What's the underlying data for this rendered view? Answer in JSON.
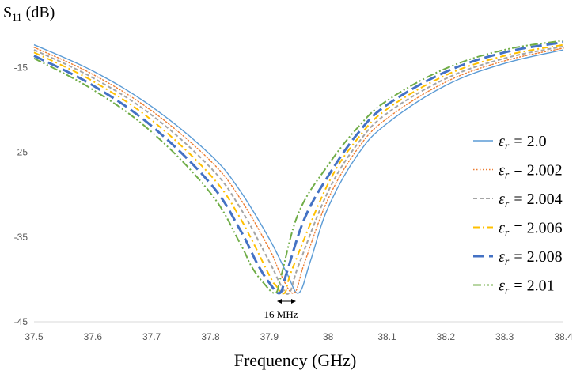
{
  "chart_data": {
    "type": "line",
    "ylabel_main": "S",
    "ylabel_sub": "11",
    "ylabel_unit": "(dB)",
    "xlabel": "Frequency (GHz)",
    "xlim": [
      37.5,
      38.4
    ],
    "ylim": [
      -45,
      -11.5
    ],
    "x_ticks": [
      "37.5",
      "37.6",
      "37.7",
      "37.8",
      "37.9",
      "38",
      "38.1",
      "38.2",
      "38.3",
      "38.4"
    ],
    "y_ticks": [
      "-15",
      "-25",
      "-35",
      "-45"
    ],
    "grid": false,
    "legend_position": "right",
    "annotation": "16 MHz",
    "series": [
      {
        "name_symbol": "ε",
        "name_sub": "r",
        "name_value": "= 2.0",
        "color": "#5b9bd5",
        "dash": "solid",
        "f0": 37.95,
        "min": -41.6,
        "x": [
          37.5,
          37.6,
          37.7,
          37.8,
          37.85,
          37.9,
          37.93,
          37.95,
          37.97,
          38.0,
          38.05,
          38.1,
          38.2,
          38.3,
          38.4
        ],
        "y": [
          -12.3,
          -15.4,
          -19.6,
          -25.3,
          -29.5,
          -35.2,
          -39.3,
          -41.6,
          -37.8,
          -31.5,
          -25.3,
          -21.6,
          -17.1,
          -14.5,
          -12.9
        ]
      },
      {
        "name_symbol": "ε",
        "name_sub": "r",
        "name_value": "= 2.002",
        "color": "#ed7d31",
        "dash": "dotted",
        "f0": 37.942,
        "min": -41.6,
        "x": [
          37.5,
          37.6,
          37.7,
          37.8,
          37.85,
          37.9,
          37.92,
          37.942,
          37.96,
          38.0,
          38.05,
          38.1,
          38.2,
          38.3,
          38.4
        ],
        "y": [
          -12.6,
          -15.8,
          -20.1,
          -26.0,
          -30.4,
          -36.4,
          -39.5,
          -41.6,
          -38.0,
          -30.5,
          -24.6,
          -21.0,
          -16.7,
          -14.2,
          -12.7
        ]
      },
      {
        "name_symbol": "ε",
        "name_sub": "r",
        "name_value": "= 2.004",
        "color": "#a5a5a5",
        "dash": "dashed",
        "f0": 37.934,
        "min": -41.6,
        "x": [
          37.5,
          37.6,
          37.7,
          37.8,
          37.85,
          37.9,
          37.92,
          37.934,
          37.95,
          38.0,
          38.05,
          38.1,
          38.2,
          38.3,
          38.4
        ],
        "y": [
          -12.9,
          -16.2,
          -20.6,
          -26.8,
          -31.5,
          -37.9,
          -40.7,
          -41.6,
          -38.3,
          -29.6,
          -24.0,
          -20.4,
          -16.3,
          -13.9,
          -12.5
        ]
      },
      {
        "name_symbol": "ε",
        "name_sub": "r",
        "name_value": "= 2.006",
        "color": "#ffc000",
        "dash": "dashdot",
        "f0": 37.926,
        "min": -41.6,
        "x": [
          37.5,
          37.6,
          37.7,
          37.8,
          37.85,
          37.9,
          37.91,
          37.926,
          37.94,
          38.0,
          38.05,
          38.1,
          38.2,
          38.3,
          38.4
        ],
        "y": [
          -13.2,
          -16.6,
          -21.2,
          -27.7,
          -32.7,
          -39.5,
          -40.6,
          -41.6,
          -38.6,
          -28.7,
          -23.4,
          -19.9,
          -15.9,
          -13.6,
          -12.3
        ]
      },
      {
        "name_symbol": "ε",
        "name_sub": "r",
        "name_value": "= 2.008",
        "color": "#4472c4",
        "dash": "longdash",
        "f0": 37.918,
        "min": -41.6,
        "x": [
          37.5,
          37.6,
          37.7,
          37.8,
          37.85,
          37.88,
          37.9,
          37.918,
          37.93,
          37.96,
          38.0,
          38.05,
          38.1,
          38.2,
          38.3,
          38.4
        ],
        "y": [
          -13.6,
          -17.1,
          -21.9,
          -28.7,
          -34.1,
          -38.2,
          -40.4,
          -41.6,
          -39.1,
          -32.8,
          -27.8,
          -22.8,
          -19.4,
          -15.5,
          -13.2,
          -12.0
        ]
      },
      {
        "name_symbol": "ε",
        "name_sub": "r",
        "name_value": "= 2.01",
        "color": "#70ad47",
        "dash": "dashdotdot",
        "f0": 37.91,
        "min": -41.6,
        "x": [
          37.5,
          37.6,
          37.7,
          37.8,
          37.85,
          37.87,
          37.89,
          37.91,
          37.92,
          37.95,
          38.0,
          38.05,
          38.1,
          38.2,
          38.3,
          38.4
        ],
        "y": [
          -13.9,
          -17.6,
          -22.6,
          -29.8,
          -35.7,
          -38.5,
          -40.4,
          -41.6,
          -39.6,
          -32.1,
          -26.5,
          -22.1,
          -18.9,
          -15.1,
          -12.9,
          -11.8
        ]
      }
    ]
  }
}
